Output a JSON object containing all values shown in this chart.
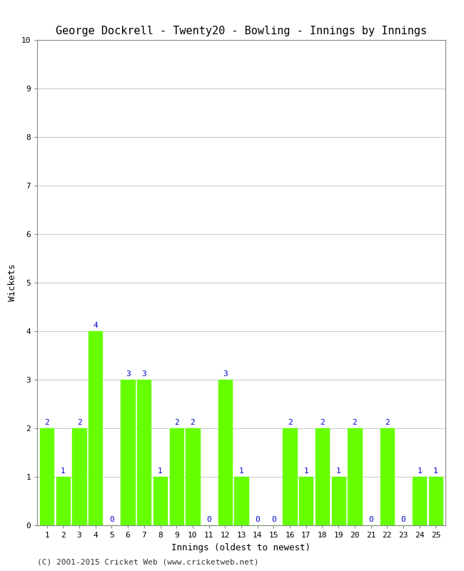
{
  "title": "George Dockrell - Twenty20 - Bowling - Innings by Innings",
  "xlabel": "Innings (oldest to newest)",
  "ylabel": "Wickets",
  "categories": [
    1,
    2,
    3,
    4,
    5,
    6,
    7,
    8,
    9,
    10,
    11,
    12,
    13,
    14,
    15,
    16,
    17,
    18,
    19,
    20,
    21,
    22,
    23,
    24,
    25
  ],
  "values": [
    2,
    1,
    2,
    4,
    0,
    3,
    3,
    1,
    2,
    2,
    0,
    3,
    1,
    0,
    0,
    2,
    1,
    2,
    1,
    2,
    0,
    2,
    0,
    1,
    1
  ],
  "bar_color": "#66ff00",
  "label_color": "#0000cc",
  "background_color": "#ffffff",
  "plot_background": "#ffffff",
  "ylim": [
    0,
    10
  ],
  "yticks": [
    0,
    1,
    2,
    3,
    4,
    5,
    6,
    7,
    8,
    9,
    10
  ],
  "title_fontsize": 11,
  "axis_label_fontsize": 9,
  "tick_fontsize": 8,
  "bar_label_fontsize": 8,
  "footer": "(C) 2001-2015 Cricket Web (www.cricketweb.net)",
  "footer_fontsize": 8
}
